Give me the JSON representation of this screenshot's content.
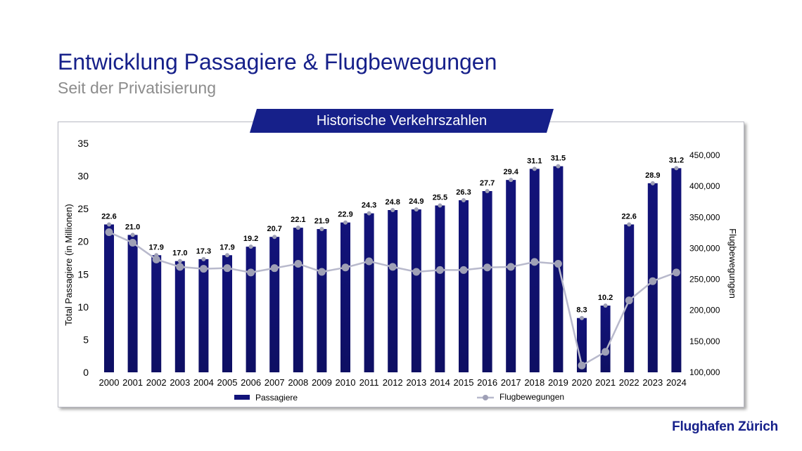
{
  "header": {
    "title": "Entwicklung Passagiere & Flugbewegungen",
    "subtitle": "Seit der Privatisierung",
    "banner": "Historische Verkehrszahlen"
  },
  "logo": {
    "text": "Flughafen Zürich"
  },
  "colors": {
    "brand": "#16208a",
    "bar": "#12137a",
    "line": "#b8b9cc",
    "marker": "#9fa0b6"
  },
  "chart_data": {
    "type": "bar",
    "title": "Historische Verkehrszahlen",
    "categories": [
      "2000",
      "2001",
      "2002",
      "2003",
      "2004",
      "2005",
      "2006",
      "2007",
      "2008",
      "2009",
      "2010",
      "2011",
      "2012",
      "2013",
      "2014",
      "2015",
      "2016",
      "2017",
      "2018",
      "2019",
      "2020",
      "2021",
      "2022",
      "2023",
      "2024"
    ],
    "series": [
      {
        "name": "Passagiere",
        "type": "bar",
        "axis": "left",
        "values": [
          22.6,
          21.0,
          17.9,
          17.0,
          17.3,
          17.9,
          19.2,
          20.7,
          22.1,
          21.9,
          22.9,
          24.3,
          24.8,
          24.9,
          25.5,
          26.3,
          27.7,
          29.4,
          31.1,
          31.5,
          8.3,
          10.2,
          22.6,
          28.9,
          31.2
        ],
        "labels": [
          "22.6",
          "21.0",
          "17.9",
          "17.0",
          "17.3",
          "17.9",
          "19.2",
          "20.7",
          "22.1",
          "21.9",
          "22.9",
          "24.3",
          "24.8",
          "24.9",
          "25.5",
          "26.3",
          "27.7",
          "29.4",
          "31.1",
          "31.5",
          "8.3",
          "10.2",
          "22.6",
          "28.9",
          "31.2"
        ]
      },
      {
        "name": "Flugbewegungen",
        "type": "line",
        "axis": "right",
        "values": [
          326000,
          309000,
          282000,
          270000,
          267000,
          268000,
          261000,
          268000,
          275000,
          262000,
          269000,
          279000,
          270000,
          262000,
          265000,
          265000,
          269000,
          270000,
          278000,
          275000,
          111000,
          133000,
          216000,
          247000,
          261000
        ]
      }
    ],
    "ylabel": "Total Passagiere (in Millionen)",
    "y2label": "Flugbewegungen",
    "ylim": [
      0,
      35
    ],
    "yticks": [
      "0",
      "5",
      "10",
      "15",
      "20",
      "25",
      "30",
      "35"
    ],
    "y2lim": [
      100000,
      450000
    ],
    "y2ticks": [
      "100,000",
      "150,000",
      "200,000",
      "250,000",
      "300,000",
      "350,000",
      "400,000",
      "450,000"
    ],
    "grid": false,
    "legend": "bottom"
  }
}
